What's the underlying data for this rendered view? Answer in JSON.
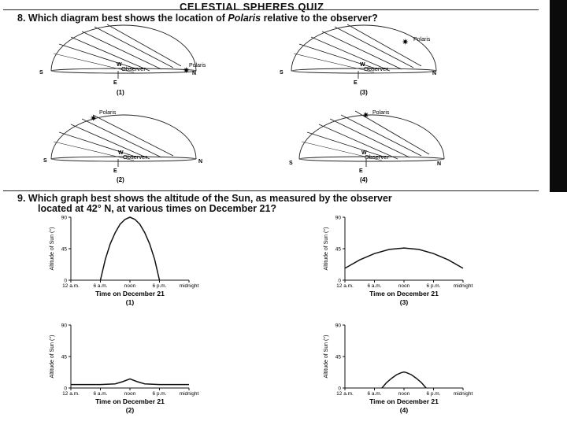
{
  "header": {
    "title": "CELESTIAL SPHERES QUIZ"
  },
  "question8": {
    "prefix": "8.  Which diagram best shows the location of ",
    "star": "Polaris",
    "suffix": " relative to the observer?",
    "diagrams": [
      {
        "number": "(1)",
        "observer": "Observer",
        "polaris": "Polaris",
        "west": "W",
        "south": "S",
        "north": "N",
        "east": "E"
      },
      {
        "number": "(3)",
        "observer": "Observer",
        "polaris": "Polaris",
        "west": "W",
        "south": "S",
        "north": "N",
        "east": "E"
      },
      {
        "number": "(2)",
        "observer": "Observer",
        "polaris": "Polaris",
        "west": "W",
        "south": "S",
        "north": "N",
        "east": "E"
      },
      {
        "number": "(4)",
        "observer": "Observer",
        "polaris": "Polaris",
        "west": "W",
        "south": "S",
        "north": "N",
        "east": "E"
      }
    ]
  },
  "question9": {
    "line1": "9.  Which graph best shows the altitude of the Sun, as measured by the observer",
    "line2": "located at 42° N, at various times on December 21?"
  },
  "chart_data": [
    {
      "type": "line",
      "label": "(1)",
      "xlabel": "Time on December 21",
      "ylabel": "Altitude of Sun (°)",
      "categories": [
        "12 a.m.",
        "6 a.m.",
        "noon",
        "6 p.m.",
        "midnight"
      ],
      "yticks": [
        0,
        45,
        90
      ],
      "ylim": [
        0,
        90
      ],
      "x": [
        6,
        7,
        8,
        9,
        10,
        11,
        12,
        13,
        14,
        15,
        16,
        17,
        18
      ],
      "y": [
        0,
        30,
        52,
        68,
        80,
        87,
        90,
        87,
        80,
        68,
        52,
        30,
        0
      ]
    },
    {
      "type": "line",
      "label": "(3)",
      "xlabel": "Time on December 21",
      "ylabel": "Altitude of Sun (°)",
      "categories": [
        "12 a.m.",
        "6 a.m.",
        "noon",
        "6 p.m.",
        "midnight"
      ],
      "yticks": [
        0,
        45,
        90
      ],
      "ylim": [
        0,
        90
      ],
      "x": [
        0,
        3,
        6,
        9,
        12,
        15,
        18,
        21,
        24
      ],
      "y": [
        17,
        29,
        38,
        44,
        46,
        44,
        38,
        29,
        17
      ]
    },
    {
      "type": "line",
      "label": "(2)",
      "xlabel": "Time on December 21",
      "ylabel": "Altitude of Sun (°)",
      "categories": [
        "12 a.m.",
        "6 a.m.",
        "noon",
        "6 p.m.",
        "midnight"
      ],
      "yticks": [
        0,
        45,
        90
      ],
      "ylim": [
        0,
        90
      ],
      "x": [
        0,
        6,
        9,
        10.5,
        12,
        13.5,
        15,
        18,
        24
      ],
      "y": [
        5,
        5,
        6,
        9,
        13,
        9,
        6,
        5,
        5
      ]
    },
    {
      "type": "line",
      "label": "(4)",
      "xlabel": "Time on December 21",
      "ylabel": "Altitude of Sun (°)",
      "categories": [
        "12 a.m.",
        "6 a.m.",
        "noon",
        "6 p.m.",
        "midnight"
      ],
      "yticks": [
        0,
        45,
        90
      ],
      "ylim": [
        0,
        90
      ],
      "x": [
        7.5,
        8.5,
        9.5,
        10.5,
        11.5,
        12,
        12.5,
        13.5,
        14.5,
        15.5,
        16.5
      ],
      "y": [
        0,
        8,
        14,
        19,
        22,
        23,
        22,
        19,
        14,
        8,
        0
      ]
    }
  ]
}
